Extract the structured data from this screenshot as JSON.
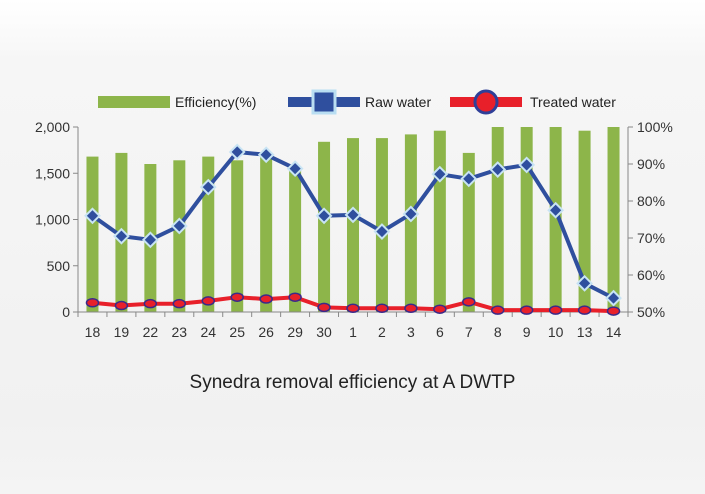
{
  "chart_data": {
    "type": "bar+line",
    "title": "Synedra removal efficiency at A DWTP",
    "categories": [
      "18",
      "19",
      "22",
      "23",
      "24",
      "25",
      "26",
      "29",
      "30",
      "1",
      "2",
      "3",
      "6",
      "7",
      "8",
      "9",
      "10",
      "13",
      "14"
    ],
    "left_axis": {
      "ylim": [
        0,
        2000
      ],
      "ticks": [
        0,
        500,
        1000,
        1500,
        2000
      ],
      "tick_labels": [
        "0",
        "500",
        "1,000",
        "1,500",
        "2,000"
      ]
    },
    "right_axis": {
      "ylim": [
        50,
        100
      ],
      "ticks": [
        50,
        60,
        70,
        80,
        90,
        100
      ],
      "tick_labels": [
        "50%",
        "60%",
        "70%",
        "80%",
        "90%",
        "100%"
      ]
    },
    "series": [
      {
        "name": "Efficiency(%)",
        "type": "bar",
        "axis": "right",
        "color": "#8db54a",
        "values": [
          92,
          93,
          90,
          91,
          92,
          91,
          92,
          89,
          96,
          97,
          97,
          98,
          99,
          93,
          100,
          100,
          100,
          99,
          100
        ]
      },
      {
        "name": "Raw water",
        "type": "line",
        "axis": "left",
        "color": "#2f4f9e",
        "marker": "square",
        "values": [
          1040,
          820,
          780,
          930,
          1350,
          1730,
          1700,
          1550,
          1040,
          1050,
          870,
          1060,
          1490,
          1440,
          1540,
          1590,
          1100,
          310,
          150
        ]
      },
      {
        "name": "Treated water",
        "type": "line",
        "axis": "left",
        "color": "#e8202a",
        "marker": "circle",
        "values": [
          100,
          70,
          90,
          90,
          120,
          160,
          140,
          160,
          50,
          40,
          40,
          40,
          30,
          110,
          20,
          20,
          20,
          20,
          10
        ]
      }
    ],
    "legend_position": "top",
    "grid": false
  }
}
